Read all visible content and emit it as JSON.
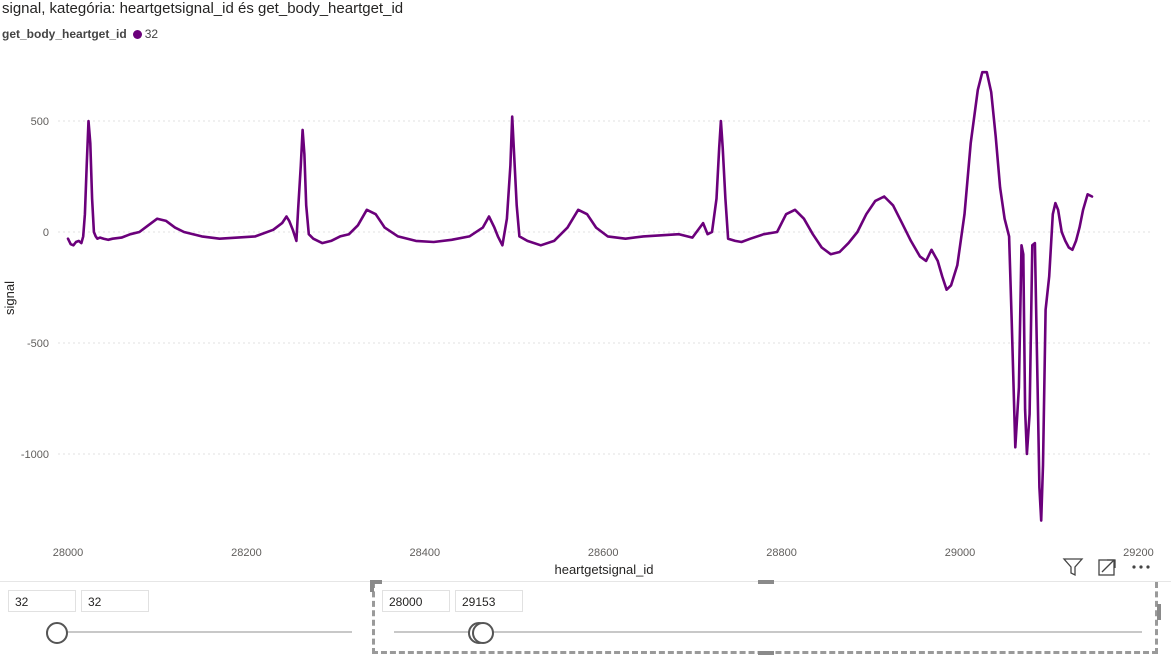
{
  "visual": {
    "title": "signal, kategória: heartgetsignal_id és get_body_heartget_id",
    "legend_title": "get_body_heartget_id",
    "legend_item": "32",
    "icons": [
      "filter-icon",
      "focus-mode-icon",
      "more-options-icon"
    ]
  },
  "chart_data": {
    "type": "line",
    "xlabel": "heartgetsignal_id",
    "ylabel": "signal",
    "xlim": [
      28000,
      29153
    ],
    "ylim": [
      -1350,
      830
    ],
    "x_ticks": [
      "28000",
      "28200",
      "28400",
      "28600",
      "28800",
      "29000",
      "29200"
    ],
    "y_ticks": [
      "500",
      "0",
      "-500",
      "-1000"
    ],
    "grid": "horizontal dashed",
    "color": "#6B007B",
    "series": [
      {
        "name": "32",
        "points": [
          [
            28000,
            -30
          ],
          [
            28003,
            -55
          ],
          [
            28006,
            -60
          ],
          [
            28009,
            -45
          ],
          [
            28012,
            -40
          ],
          [
            28015,
            -50
          ],
          [
            28017,
            -20
          ],
          [
            28019,
            80
          ],
          [
            28021,
            300
          ],
          [
            28023,
            500
          ],
          [
            28025,
            400
          ],
          [
            28027,
            150
          ],
          [
            28029,
            0
          ],
          [
            28031,
            -20
          ],
          [
            28033,
            -30
          ],
          [
            28036,
            -25
          ],
          [
            28040,
            -30
          ],
          [
            28045,
            -35
          ],
          [
            28050,
            -30
          ],
          [
            28060,
            -25
          ],
          [
            28070,
            -10
          ],
          [
            28080,
            0
          ],
          [
            28090,
            30
          ],
          [
            28100,
            60
          ],
          [
            28110,
            50
          ],
          [
            28120,
            20
          ],
          [
            28130,
            0
          ],
          [
            28150,
            -20
          ],
          [
            28170,
            -30
          ],
          [
            28190,
            -25
          ],
          [
            28210,
            -20
          ],
          [
            28230,
            10
          ],
          [
            28240,
            40
          ],
          [
            28245,
            70
          ],
          [
            28248,
            50
          ],
          [
            28252,
            10
          ],
          [
            28256,
            -40
          ],
          [
            28258,
            100
          ],
          [
            28261,
            300
          ],
          [
            28263,
            460
          ],
          [
            28265,
            350
          ],
          [
            28267,
            120
          ],
          [
            28270,
            -10
          ],
          [
            28275,
            -30
          ],
          [
            28285,
            -50
          ],
          [
            28295,
            -40
          ],
          [
            28305,
            -20
          ],
          [
            28315,
            -10
          ],
          [
            28325,
            30
          ],
          [
            28335,
            100
          ],
          [
            28345,
            80
          ],
          [
            28355,
            20
          ],
          [
            28370,
            -20
          ],
          [
            28390,
            -40
          ],
          [
            28410,
            -45
          ],
          [
            28430,
            -35
          ],
          [
            28450,
            -20
          ],
          [
            28465,
            20
          ],
          [
            28472,
            70
          ],
          [
            28478,
            20
          ],
          [
            28482,
            -20
          ],
          [
            28487,
            -60
          ],
          [
            28492,
            60
          ],
          [
            28496,
            300
          ],
          [
            28498,
            520
          ],
          [
            28500,
            360
          ],
          [
            28503,
            120
          ],
          [
            28506,
            -20
          ],
          [
            28515,
            -40
          ],
          [
            28530,
            -60
          ],
          [
            28545,
            -40
          ],
          [
            28560,
            20
          ],
          [
            28572,
            100
          ],
          [
            28582,
            80
          ],
          [
            28592,
            20
          ],
          [
            28605,
            -20
          ],
          [
            28625,
            -30
          ],
          [
            28645,
            -20
          ],
          [
            28665,
            -15
          ],
          [
            28685,
            -10
          ],
          [
            28700,
            -25
          ],
          [
            28712,
            40
          ],
          [
            28717,
            -10
          ],
          [
            28722,
            0
          ],
          [
            28727,
            150
          ],
          [
            28730,
            380
          ],
          [
            28732,
            500
          ],
          [
            28734,
            380
          ],
          [
            28737,
            150
          ],
          [
            28740,
            -30
          ],
          [
            28748,
            -40
          ],
          [
            28755,
            -45
          ],
          [
            28765,
            -30
          ],
          [
            28780,
            -10
          ],
          [
            28795,
            0
          ],
          [
            28805,
            80
          ],
          [
            28815,
            100
          ],
          [
            28825,
            60
          ],
          [
            28835,
            -10
          ],
          [
            28845,
            -70
          ],
          [
            28855,
            -100
          ],
          [
            28865,
            -90
          ],
          [
            28875,
            -50
          ],
          [
            28885,
            0
          ],
          [
            28895,
            80
          ],
          [
            28905,
            140
          ],
          [
            28915,
            160
          ],
          [
            28925,
            120
          ],
          [
            28935,
            40
          ],
          [
            28945,
            -40
          ],
          [
            28955,
            -110
          ],
          [
            28962,
            -130
          ],
          [
            28968,
            -80
          ],
          [
            28975,
            -130
          ],
          [
            28980,
            -200
          ],
          [
            28985,
            -260
          ],
          [
            28990,
            -240
          ],
          [
            28997,
            -150
          ],
          [
            29005,
            80
          ],
          [
            29012,
            400
          ],
          [
            29020,
            640
          ],
          [
            29025,
            720
          ],
          [
            29030,
            720
          ],
          [
            29035,
            630
          ],
          [
            29040,
            430
          ],
          [
            29045,
            200
          ],
          [
            29050,
            60
          ],
          [
            29055,
            -20
          ],
          [
            29058,
            -400
          ],
          [
            29062,
            -970
          ],
          [
            29066,
            -700
          ],
          [
            29069,
            -60
          ],
          [
            29071,
            -100
          ],
          [
            29073,
            -800
          ],
          [
            29075,
            -1000
          ],
          [
            29078,
            -820
          ],
          [
            29081,
            -60
          ],
          [
            29084,
            -50
          ],
          [
            29087,
            -700
          ],
          [
            29089,
            -1150
          ],
          [
            29091,
            -1300
          ],
          [
            29093,
            -1050
          ],
          [
            29096,
            -350
          ],
          [
            29100,
            -200
          ],
          [
            29104,
            80
          ],
          [
            29107,
            130
          ],
          [
            29110,
            100
          ],
          [
            29114,
            0
          ],
          [
            29118,
            -40
          ],
          [
            29122,
            -70
          ],
          [
            29126,
            -80
          ],
          [
            29130,
            -40
          ],
          [
            29134,
            20
          ],
          [
            29138,
            100
          ],
          [
            29143,
            170
          ],
          [
            29148,
            160
          ]
        ]
      }
    ]
  },
  "slicer_left": {
    "min_value": "32",
    "max_value": "32",
    "slider_position": 0.0
  },
  "slicer_right": {
    "min_value": "28000",
    "max_value": "29153",
    "slider_position": 0.0
  }
}
